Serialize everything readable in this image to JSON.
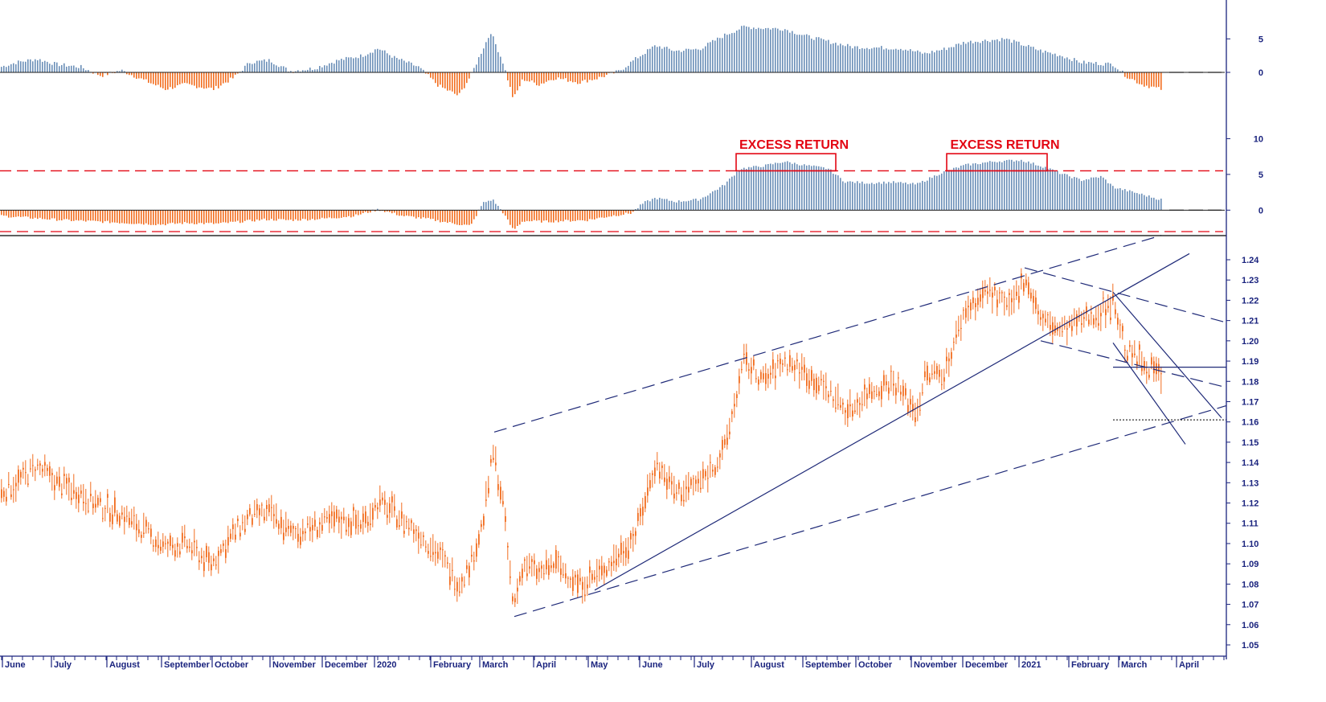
{
  "colors": {
    "positive": "#6b8fb8",
    "negative": "#f26d1f",
    "price": "#f26d1f",
    "axis": "#1a237e",
    "trend": "#1f2a78",
    "threshold": "#e30613",
    "annotation": "#e30613"
  },
  "chart_data": [
    {
      "type": "bar",
      "panel": "top",
      "y_ticks": [
        "5",
        "0"
      ],
      "ylim": [
        -6,
        9
      ],
      "series": [
        {
          "keypoints": [
            [
              0,
              0.8
            ],
            [
              20,
              1.5
            ],
            [
              45,
              2
            ],
            [
              70,
              1.2
            ],
            [
              100,
              0.8
            ],
            [
              125,
              -0.5
            ],
            [
              150,
              0.3
            ],
            [
              175,
              -1
            ],
            [
              205,
              -2.5
            ],
            [
              230,
              -1.8
            ],
            [
              265,
              -2.5
            ],
            [
              290,
              -0.8
            ],
            [
              310,
              1.5
            ],
            [
              335,
              1.8
            ],
            [
              360,
              0.2
            ],
            [
              390,
              0.6
            ],
            [
              420,
              1.8
            ],
            [
              450,
              2.5
            ],
            [
              470,
              3.6
            ],
            [
              490,
              2.2
            ],
            [
              520,
              0.8
            ],
            [
              545,
              -2
            ],
            [
              570,
              -3.5
            ],
            [
              585,
              -0.5
            ],
            [
              600,
              3.5
            ],
            [
              610,
              6
            ],
            [
              625,
              1.5
            ],
            [
              638,
              -4
            ],
            [
              650,
              -1
            ],
            [
              670,
              -1.8
            ],
            [
              690,
              -0.8
            ],
            [
              720,
              -1.5
            ],
            [
              745,
              -0.8
            ],
            [
              770,
              0.2
            ],
            [
              790,
              2
            ],
            [
              815,
              4
            ],
            [
              840,
              3.2
            ],
            [
              870,
              3.5
            ],
            [
              900,
              5.5
            ],
            [
              925,
              6.8
            ],
            [
              950,
              6.6
            ],
            [
              975,
              6.5
            ],
            [
              1000,
              5.5
            ],
            [
              1030,
              4.6
            ],
            [
              1060,
              3.8
            ],
            [
              1090,
              3.7
            ],
            [
              1120,
              3.6
            ],
            [
              1150,
              2.8
            ],
            [
              1175,
              3.5
            ],
            [
              1200,
              4.5
            ],
            [
              1230,
              4.8
            ],
            [
              1250,
              5
            ],
            [
              1270,
              4.2
            ],
            [
              1295,
              3.2
            ],
            [
              1320,
              2.5
            ],
            [
              1345,
              1.5
            ],
            [
              1370,
              1.3
            ],
            [
              1385,
              1.2
            ],
            [
              1400,
              -0.5
            ],
            [
              1420,
              -1.8
            ],
            [
              1443,
              -2.5
            ]
          ]
        }
      ]
    },
    {
      "type": "bar",
      "panel": "middle",
      "y_ticks": [
        "10",
        "5",
        "0"
      ],
      "ylim": [
        -3,
        10.5
      ],
      "reference_lines": [
        5.5,
        -3
      ],
      "annotations": [
        {
          "text": "EXCESS RETURN",
          "x_start": 916,
          "x_end": 1040
        },
        {
          "text": "EXCESS RETURN",
          "x_start": 1178,
          "x_end": 1303
        }
      ],
      "series": [
        {
          "keypoints": [
            [
              0,
              -0.8
            ],
            [
              40,
              -1.1
            ],
            [
              80,
              -1.4
            ],
            [
              120,
              -1.6
            ],
            [
              160,
              -1.8
            ],
            [
              200,
              -2
            ],
            [
              230,
              -1.8
            ],
            [
              270,
              -1.9
            ],
            [
              300,
              -1.6
            ],
            [
              330,
              -1.3
            ],
            [
              360,
              -1.4
            ],
            [
              400,
              -1.2
            ],
            [
              440,
              -0.8
            ],
            [
              470,
              0.1
            ],
            [
              500,
              -0.8
            ],
            [
              530,
              -1.2
            ],
            [
              560,
              -1.8
            ],
            [
              585,
              -2.2
            ],
            [
              600,
              1
            ],
            [
              612,
              1.5
            ],
            [
              625,
              -0.3
            ],
            [
              638,
              -2.8
            ],
            [
              650,
              -1.5
            ],
            [
              680,
              -1.6
            ],
            [
              700,
              -1.5
            ],
            [
              730,
              -1.4
            ],
            [
              760,
              -0.8
            ],
            [
              785,
              -0.4
            ],
            [
              800,
              1
            ],
            [
              815,
              1.7
            ],
            [
              840,
              1.2
            ],
            [
              870,
              1.5
            ],
            [
              900,
              3.5
            ],
            [
              920,
              5.8
            ],
            [
              950,
              6.2
            ],
            [
              975,
              6.8
            ],
            [
              1000,
              6.3
            ],
            [
              1030,
              5.8
            ],
            [
              1050,
              4
            ],
            [
              1080,
              3.8
            ],
            [
              1110,
              3.9
            ],
            [
              1140,
              3.6
            ],
            [
              1170,
              5.2
            ],
            [
              1200,
              6.3
            ],
            [
              1235,
              6.8
            ],
            [
              1270,
              7
            ],
            [
              1300,
              6
            ],
            [
              1320,
              5.1
            ],
            [
              1345,
              4.2
            ],
            [
              1370,
              4.7
            ],
            [
              1385,
              3.2
            ],
            [
              1410,
              2.5
            ],
            [
              1443,
              1.5
            ]
          ]
        }
      ]
    },
    {
      "type": "candlestick",
      "panel": "bottom",
      "y_ticks": [
        "1.24",
        "1.23",
        "1.22",
        "1.21",
        "1.20",
        "1.19",
        "1.18",
        "1.17",
        "1.16",
        "1.15",
        "1.14",
        "1.13",
        "1.12",
        "1.11",
        "1.10",
        "1.09",
        "1.08",
        "1.07",
        "1.06",
        "1.05"
      ],
      "ylim": [
        1.05,
        1.24
      ],
      "x_labels": [
        "June",
        "July",
        "August",
        "September",
        "October",
        "November",
        "December",
        "2020",
        "February",
        "March",
        "April",
        "May",
        "June",
        "July",
        "August",
        "September",
        "October",
        "November",
        "December",
        "2021",
        "February",
        "March",
        "April"
      ],
      "series": [
        {
          "keypoints": [
            [
              0,
              1.125
            ],
            [
              20,
              1.13
            ],
            [
              45,
              1.138
            ],
            [
              70,
              1.13
            ],
            [
              100,
              1.125
            ],
            [
              125,
              1.118
            ],
            [
              150,
              1.115
            ],
            [
              175,
              1.107
            ],
            [
              205,
              1.098
            ],
            [
              230,
              1.1
            ],
            [
              262,
              1.09
            ],
            [
              290,
              1.105
            ],
            [
              310,
              1.113
            ],
            [
              335,
              1.115
            ],
            [
              360,
              1.105
            ],
            [
              390,
              1.108
            ],
            [
              420,
              1.112
            ],
            [
              450,
              1.11
            ],
            [
              470,
              1.12
            ],
            [
              490,
              1.115
            ],
            [
              520,
              1.105
            ],
            [
              545,
              1.095
            ],
            [
              570,
              1.08
            ],
            [
              585,
              1.09
            ],
            [
              600,
              1.11
            ],
            [
              613,
              1.145
            ],
            [
              625,
              1.12
            ],
            [
              638,
              1.068
            ],
            [
              650,
              1.09
            ],
            [
              670,
              1.085
            ],
            [
              690,
              1.09
            ],
            [
              720,
              1.08
            ],
            [
              745,
              1.085
            ],
            [
              770,
              1.095
            ],
            [
              790,
              1.105
            ],
            [
              815,
              1.14
            ],
            [
              840,
              1.125
            ],
            [
              870,
              1.13
            ],
            [
              900,
              1.145
            ],
            [
              925,
              1.19
            ],
            [
              950,
              1.18
            ],
            [
              975,
              1.19
            ],
            [
              1000,
              1.185
            ],
            [
              1030,
              1.175
            ],
            [
              1055,
              1.165
            ],
            [
              1080,
              1.175
            ],
            [
              1110,
              1.18
            ],
            [
              1140,
              1.165
            ],
            [
              1150,
              1.182
            ],
            [
              1175,
              1.185
            ],
            [
              1200,
              1.215
            ],
            [
              1230,
              1.225
            ],
            [
              1255,
              1.215
            ],
            [
              1275,
              1.232
            ],
            [
              1295,
              1.21
            ],
            [
              1320,
              1.205
            ],
            [
              1345,
              1.21
            ],
            [
              1370,
              1.215
            ],
            [
              1385,
              1.22
            ],
            [
              1400,
              1.195
            ],
            [
              1420,
              1.19
            ],
            [
              1443,
              1.183
            ]
          ]
        }
      ]
    }
  ]
}
